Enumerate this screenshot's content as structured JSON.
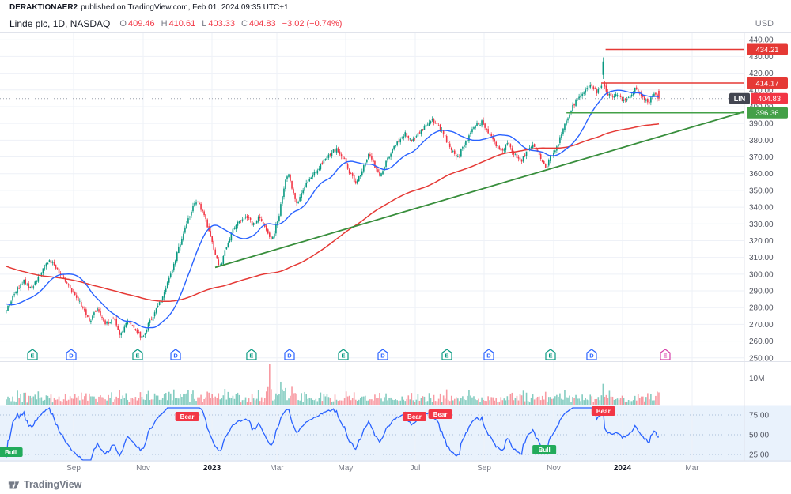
{
  "header": {
    "attribution_user": "DERAKTIONAER2",
    "attribution_rest": "published on TradingView.com, Feb 01, 2024 09:35 UTC+1",
    "symbol_title": "Linde plc, 1D, NASDAQ",
    "ohlc": {
      "o_label": "O",
      "o": "409.46",
      "h_label": "H",
      "h": "410.61",
      "l_label": "L",
      "l": "403.33",
      "c_label": "C",
      "c": "404.83",
      "change": "−3.02 (−0.74%)"
    },
    "currency": "USD"
  },
  "footer": {
    "brand": "TradingView"
  },
  "palette": {
    "up": "#089981",
    "down": "#f23645",
    "ma_fast": "#2962ff",
    "ma_slow": "#e53935",
    "trend": "#388e3c",
    "level_res": "#e53935",
    "level_sup": "#43a047",
    "grid": "#eef1f7",
    "separator": "#e0e3eb",
    "axis_text": "#50535e",
    "rsi_bg": "#e9f2fc",
    "rsi_line": "#2962ff",
    "bear_bg": "#f23645",
    "bull_bg": "#22ab5b",
    "earnings": "#089981",
    "dividends": "#2962ff",
    "earnings_future": "#d63ea8",
    "last_badge_bg": "#f23645",
    "symbol_badge_bg": "#434651"
  },
  "axis": {
    "price_ticks": [
      440,
      430,
      420,
      410,
      400,
      390,
      380,
      370,
      360,
      350,
      340,
      330,
      320,
      310,
      300,
      290,
      280,
      270,
      260,
      250
    ],
    "volume_tick": {
      "value": 10,
      "label": "10M"
    },
    "rsi_ticks": [
      {
        "value": 75,
        "label": "75.00"
      },
      {
        "value": 50,
        "label": "50.00"
      },
      {
        "value": 25,
        "label": "25.00"
      }
    ],
    "time_labels": [
      {
        "text": "Sep",
        "f": 0.0911
      },
      {
        "text": "Nov",
        "f": 0.1854
      },
      {
        "text": "2023",
        "f": 0.2787,
        "bold": true
      },
      {
        "text": "Mar",
        "f": 0.3666
      },
      {
        "text": "May",
        "f": 0.4598
      },
      {
        "text": "Jul",
        "f": 0.5541
      },
      {
        "text": "Sep",
        "f": 0.6474
      },
      {
        "text": "Nov",
        "f": 0.7417
      },
      {
        "text": "2024",
        "f": 0.8349,
        "bold": true
      },
      {
        "text": "Mar",
        "f": 0.9293
      }
    ]
  },
  "chart_data": {
    "type": "candlestick",
    "symbol": "LIN",
    "name": "Linde plc",
    "exchange": "NASDAQ",
    "interval": "1D",
    "price_range": [
      248,
      442
    ],
    "candle_count": 410,
    "candle_span": 0.8842,
    "last": {
      "open": 409.46,
      "high": 410.61,
      "low": 403.33,
      "close": 404.83,
      "change": -3.02,
      "change_pct": -0.74
    },
    "anchors": [
      [
        0,
        278
      ],
      [
        0.013,
        290
      ],
      [
        0.024,
        296
      ],
      [
        0.034,
        291
      ],
      [
        0.045,
        299
      ],
      [
        0.058,
        309
      ],
      [
        0.069,
        302
      ],
      [
        0.08,
        296
      ],
      [
        0.091,
        289
      ],
      [
        0.102,
        281
      ],
      [
        0.113,
        272
      ],
      [
        0.123,
        279
      ],
      [
        0.134,
        269
      ],
      [
        0.145,
        274
      ],
      [
        0.154,
        264
      ],
      [
        0.165,
        272
      ],
      [
        0.176,
        267
      ],
      [
        0.184,
        262
      ],
      [
        0.195,
        272
      ],
      [
        0.206,
        281
      ],
      [
        0.217,
        292
      ],
      [
        0.227,
        306
      ],
      [
        0.238,
        322
      ],
      [
        0.249,
        336
      ],
      [
        0.257,
        344
      ],
      [
        0.266,
        338
      ],
      [
        0.274,
        327
      ],
      [
        0.283,
        312
      ],
      [
        0.289,
        303
      ],
      [
        0.298,
        316
      ],
      [
        0.307,
        326
      ],
      [
        0.315,
        331
      ],
      [
        0.326,
        335
      ],
      [
        0.334,
        329
      ],
      [
        0.343,
        334
      ],
      [
        0.352,
        327
      ],
      [
        0.36,
        320
      ],
      [
        0.369,
        334
      ],
      [
        0.375,
        350
      ],
      [
        0.382,
        361
      ],
      [
        0.388,
        350
      ],
      [
        0.394,
        342
      ],
      [
        0.403,
        352
      ],
      [
        0.412,
        357
      ],
      [
        0.42,
        362
      ],
      [
        0.431,
        368
      ],
      [
        0.439,
        372
      ],
      [
        0.448,
        375
      ],
      [
        0.457,
        369
      ],
      [
        0.465,
        361
      ],
      [
        0.474,
        354
      ],
      [
        0.482,
        362
      ],
      [
        0.491,
        371
      ],
      [
        0.497,
        366
      ],
      [
        0.506,
        358
      ],
      [
        0.514,
        367
      ],
      [
        0.523,
        374
      ],
      [
        0.532,
        380
      ],
      [
        0.54,
        384
      ],
      [
        0.549,
        379
      ],
      [
        0.557,
        383
      ],
      [
        0.566,
        388
      ],
      [
        0.577,
        392
      ],
      [
        0.585,
        389
      ],
      [
        0.594,
        382
      ],
      [
        0.602,
        375
      ],
      [
        0.611,
        369
      ],
      [
        0.62,
        377
      ],
      [
        0.628,
        384
      ],
      [
        0.637,
        389
      ],
      [
        0.645,
        391
      ],
      [
        0.654,
        384
      ],
      [
        0.662,
        378
      ],
      [
        0.671,
        373
      ],
      [
        0.68,
        378
      ],
      [
        0.688,
        371
      ],
      [
        0.697,
        367
      ],
      [
        0.705,
        374
      ],
      [
        0.714,
        378
      ],
      [
        0.722,
        371
      ],
      [
        0.731,
        363
      ],
      [
        0.74,
        372
      ],
      [
        0.748,
        378
      ],
      [
        0.757,
        389
      ],
      [
        0.765,
        398
      ],
      [
        0.774,
        405
      ],
      [
        0.782,
        409
      ],
      [
        0.791,
        412
      ],
      [
        0.8,
        409
      ],
      [
        0.806,
        413
      ],
      [
        0.81,
        412
      ],
      [
        0.815,
        408
      ],
      [
        0.821,
        405
      ],
      [
        0.827,
        408
      ],
      [
        0.836,
        403
      ],
      [
        0.845,
        407
      ],
      [
        0.853,
        411
      ],
      [
        0.862,
        406
      ],
      [
        0.87,
        402
      ],
      [
        0.877,
        407
      ],
      [
        0.8842,
        404.8
      ]
    ],
    "spike": {
      "f": 0.8092,
      "open": 419,
      "close": 427,
      "high": 429.5,
      "low": 416.5
    },
    "levels": [
      {
        "price": 434.21,
        "label": "434.21",
        "f_start": 0.812,
        "type": "resistance"
      },
      {
        "price": 414.17,
        "label": "414.17",
        "f_start": 0.806,
        "type": "resistance"
      },
      {
        "price": 396.36,
        "label": "396.36",
        "f_start": 0.759,
        "type": "support"
      }
    ],
    "last_price_label": {
      "symbol": "LIN",
      "label": "404.83",
      "price": 404.83
    },
    "trendline": {
      "f1": 0.283,
      "p1": 304,
      "f2": 1.0,
      "p2": 397
    },
    "moving_averages": [
      {
        "name": "fast",
        "period": 25
      },
      {
        "name": "slow",
        "period": 140
      }
    ],
    "ma_backfill": {
      "days": 140,
      "start": 332
    },
    "volume": {
      "scale_max": 16,
      "unit": "M",
      "spikes": [
        [
          0.154,
          5.5
        ],
        [
          0.357,
          15.3
        ],
        [
          0.371,
          8.6
        ],
        [
          0.549,
          4.4
        ],
        [
          0.809,
          7.8
        ],
        [
          0.817,
          5.2
        ],
        [
          0.884,
          4.6
        ]
      ]
    },
    "rsi": {
      "period": 14,
      "range": [
        18,
        84
      ]
    },
    "markers": [
      {
        "type": "E",
        "f": 0.0354
      },
      {
        "type": "D",
        "f": 0.0879
      },
      {
        "type": "E",
        "f": 0.1779
      },
      {
        "type": "D",
        "f": 0.2294
      },
      {
        "type": "E",
        "f": 0.3322
      },
      {
        "type": "D",
        "f": 0.3837
      },
      {
        "type": "E",
        "f": 0.4566
      },
      {
        "type": "D",
        "f": 0.5102
      },
      {
        "type": "E",
        "f": 0.597
      },
      {
        "type": "D",
        "f": 0.6538
      },
      {
        "type": "E",
        "f": 0.7374
      },
      {
        "type": "D",
        "f": 0.7931
      },
      {
        "type": "E",
        "f": 0.8928,
        "future": true
      }
    ],
    "signals": [
      {
        "text": "Bull",
        "f": 0.006,
        "value": 28
      },
      {
        "text": "Bear",
        "f": 0.245,
        "value": 73
      },
      {
        "text": "Bear",
        "f": 0.553,
        "value": 73
      },
      {
        "text": "Bear",
        "f": 0.588,
        "value": 76
      },
      {
        "text": "Bull",
        "f": 0.729,
        "value": 31
      },
      {
        "text": "Bear",
        "f": 0.809,
        "value": 80
      }
    ]
  }
}
